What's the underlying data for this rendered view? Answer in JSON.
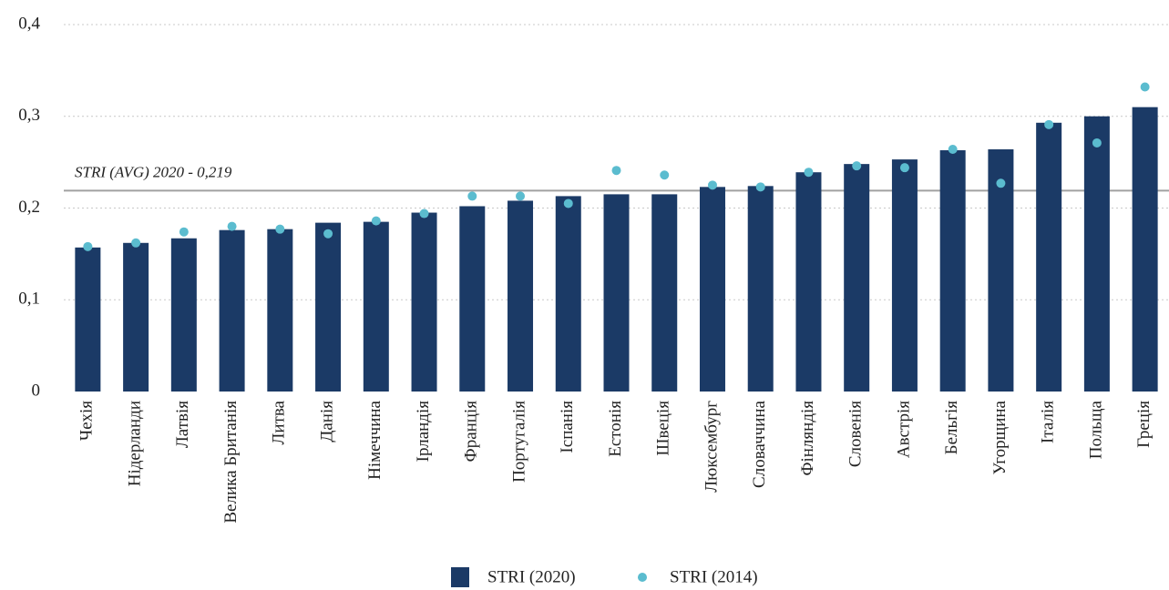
{
  "chart_data": {
    "type": "bar",
    "categories": [
      "Чехія",
      "Нідерланди",
      "Латвія",
      "Велика Британія",
      "Литва",
      "Данія",
      "Німеччина",
      "Ірландія",
      "Франція",
      "Португалія",
      "Іспанія",
      "Естонія",
      "Швеція",
      "Люксембург",
      "Словаччина",
      "Фінляндія",
      "Словенія",
      "Австрія",
      "Бельгія",
      "Угорщина",
      "Італія",
      "Польща",
      "Греція"
    ],
    "series": [
      {
        "name": "STRI (2020)",
        "type": "bar",
        "color": "#1b3a66",
        "values": [
          0.157,
          0.162,
          0.167,
          0.176,
          0.177,
          0.184,
          0.185,
          0.195,
          0.202,
          0.208,
          0.213,
          0.215,
          0.215,
          0.223,
          0.224,
          0.239,
          0.248,
          0.253,
          0.263,
          0.264,
          0.293,
          0.3,
          0.31
        ]
      },
      {
        "name": "STRI (2014)",
        "type": "scatter",
        "color": "#5bbccf",
        "values": [
          0.158,
          0.162,
          0.174,
          0.18,
          0.177,
          0.172,
          0.186,
          0.194,
          0.213,
          0.213,
          0.205,
          0.241,
          0.236,
          0.225,
          0.223,
          0.239,
          0.246,
          0.244,
          0.264,
          0.227,
          0.291,
          0.271,
          0.332
        ]
      }
    ],
    "ylim": [
      0,
      0.4
    ],
    "yticks": [
      0,
      {
        "value": 0.1,
        "label": "0,1"
      },
      {
        "value": 0.2,
        "label": "0,2"
      },
      {
        "value": 0.3,
        "label": "0,3"
      },
      {
        "value": 0.4,
        "label": "0,4"
      }
    ],
    "grid": true,
    "reference_line": {
      "value": 0.219,
      "label": "STRI (AVG) 2020 - 0,219",
      "color": "#a0a0a0"
    },
    "legend": "bottom"
  }
}
